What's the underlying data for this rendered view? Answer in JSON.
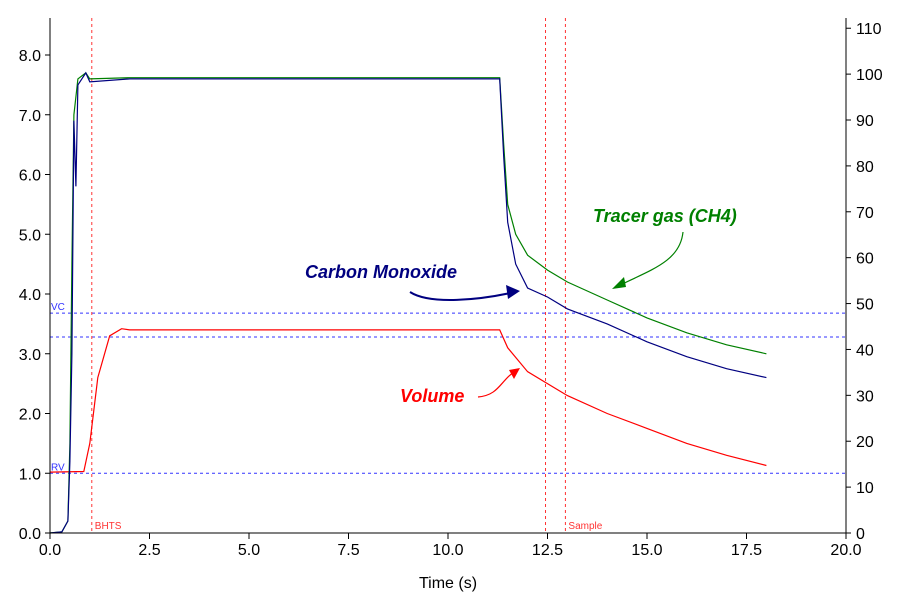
{
  "chart_data": {
    "type": "line",
    "xlabel": "Time (s)",
    "xlim": [
      0,
      20
    ],
    "ylim_left": [
      0,
      8.6
    ],
    "ylim_right": [
      0,
      112
    ],
    "x_ticks": [
      "0.0",
      "2.5",
      "5.0",
      "7.5",
      "10.0",
      "12.5",
      "15.0",
      "17.5",
      "20.0"
    ],
    "x_tick_values": [
      0,
      2.5,
      5,
      7.5,
      10,
      12.5,
      15,
      17.5,
      20
    ],
    "y_left_ticks": [
      "0.0",
      "1.0",
      "2.0",
      "3.0",
      "4.0",
      "5.0",
      "6.0",
      "7.0",
      "8.0"
    ],
    "y_left_values": [
      0,
      1,
      2,
      3,
      4,
      5,
      6,
      7,
      8
    ],
    "y_right_ticks": [
      "0",
      "10",
      "20",
      "30",
      "40",
      "50",
      "60",
      "70",
      "80",
      "90",
      "100",
      "110"
    ],
    "y_right_values": [
      0,
      10,
      20,
      30,
      40,
      50,
      60,
      70,
      80,
      90,
      100,
      110
    ],
    "series": [
      {
        "name": "Tracer gas (CH4)",
        "color": "#008000",
        "x": [
          0,
          0.3,
          0.45,
          0.5,
          0.55,
          0.6,
          0.7,
          0.9,
          1.0,
          2,
          4,
          6,
          8,
          10,
          11.3,
          11.4,
          11.5,
          11.7,
          12,
          12.5,
          13,
          14,
          15,
          16,
          17,
          18
        ],
        "y": [
          0,
          0.02,
          0.2,
          1.5,
          4.5,
          7.0,
          7.6,
          7.7,
          7.6,
          7.62,
          7.62,
          7.62,
          7.62,
          7.62,
          7.62,
          6.5,
          5.5,
          5.0,
          4.65,
          4.4,
          4.2,
          3.9,
          3.6,
          3.35,
          3.15,
          3.0
        ]
      },
      {
        "name": "Carbon Monoxide",
        "color": "#000080",
        "x": [
          0,
          0.3,
          0.45,
          0.5,
          0.55,
          0.6,
          0.65,
          0.7,
          0.9,
          1.0,
          2,
          4,
          6,
          8,
          10,
          11.3,
          11.4,
          11.5,
          11.7,
          12,
          12.5,
          13,
          14,
          15,
          16,
          17,
          18
        ],
        "y": [
          0,
          0.02,
          0.2,
          1.2,
          3.0,
          6.9,
          5.8,
          7.5,
          7.7,
          7.55,
          7.6,
          7.6,
          7.6,
          7.6,
          7.6,
          7.6,
          6.3,
          5.2,
          4.5,
          4.1,
          3.95,
          3.75,
          3.5,
          3.2,
          2.95,
          2.75,
          2.6
        ]
      },
      {
        "name": "Volume",
        "color": "#ff0000",
        "x": [
          0,
          0.85,
          1.0,
          1.2,
          1.5,
          1.8,
          2,
          5,
          11.3,
          11.5,
          12,
          13,
          14,
          15,
          16,
          17,
          18
        ],
        "y": [
          1.02,
          1.03,
          1.5,
          2.6,
          3.3,
          3.42,
          3.4,
          3.4,
          3.4,
          3.1,
          2.7,
          2.3,
          2.0,
          1.75,
          1.5,
          1.3,
          1.13
        ]
      }
    ],
    "markers_vertical": [
      {
        "label": "BHTS",
        "x": 1.05
      },
      {
        "label": "",
        "x": 12.45
      },
      {
        "label": "Sample",
        "x": 12.95
      }
    ],
    "markers_horizontal": [
      {
        "label": "VC",
        "y": 3.68
      },
      {
        "label": "",
        "y": 3.28
      },
      {
        "label": "RV",
        "y": 1.0
      }
    ],
    "annotations": [
      {
        "text": "Tracer gas (CH4)",
        "color": "#008000"
      },
      {
        "text": "Carbon Monoxide",
        "color": "#000080"
      },
      {
        "text": "Volume",
        "color": "#ff0000"
      }
    ]
  }
}
